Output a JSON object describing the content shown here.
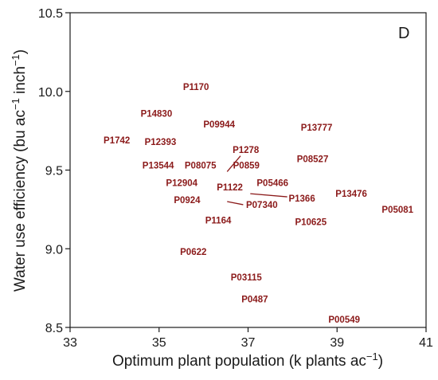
{
  "chart_data": {
    "type": "scatter",
    "panel_label": "D",
    "xlim": [
      33,
      41
    ],
    "ylim": [
      8.5,
      10.5
    ],
    "x_ticks": [
      "33",
      "35",
      "37",
      "39",
      "41"
    ],
    "y_ticks": [
      "8.5",
      "9.0",
      "9.5",
      "10.0",
      "10.5"
    ],
    "xlabel": "Optimum plant population (k plants ac",
    "xlabel_sup": "−1",
    "xlabel_suffix": ")",
    "ylabel": "Water use efficiency (bu ac",
    "ylabel_sup1": "−1",
    "ylabel_mid": " inch",
    "ylabel_sup2": "−1",
    "ylabel_suffix": ")",
    "grid": false,
    "label_color": "#8b1a1a",
    "points": [
      {
        "label": "P1170",
        "x": 35.83,
        "y": 10.03
      },
      {
        "label": "P14830",
        "x": 34.94,
        "y": 9.86
      },
      {
        "label": "P09944",
        "x": 36.35,
        "y": 9.79
      },
      {
        "label": "P13777",
        "x": 38.54,
        "y": 9.77
      },
      {
        "label": "P1742",
        "x": 34.05,
        "y": 9.69
      },
      {
        "label": "P12393",
        "x": 35.03,
        "y": 9.68
      },
      {
        "label": "P1278",
        "x": 36.95,
        "y": 9.63
      },
      {
        "label": "P08527",
        "x": 38.45,
        "y": 9.57
      },
      {
        "label": "P13544",
        "x": 34.98,
        "y": 9.53
      },
      {
        "label": "P08075",
        "x": 35.93,
        "y": 9.53
      },
      {
        "label": "P0859",
        "x": 36.96,
        "y": 9.53
      },
      {
        "label": "P12904",
        "x": 35.51,
        "y": 9.42
      },
      {
        "label": "P05466",
        "x": 37.55,
        "y": 9.42
      },
      {
        "label": "P1122",
        "x": 36.59,
        "y": 9.39
      },
      {
        "label": "P13476",
        "x": 39.32,
        "y": 9.35
      },
      {
        "label": "P1366",
        "x": 38.21,
        "y": 9.32
      },
      {
        "label": "P0924",
        "x": 35.63,
        "y": 9.31
      },
      {
        "label": "P07340",
        "x": 37.31,
        "y": 9.28
      },
      {
        "label": "P05081",
        "x": 40.36,
        "y": 9.25
      },
      {
        "label": "P1164",
        "x": 36.33,
        "y": 9.18
      },
      {
        "label": "P10625",
        "x": 38.41,
        "y": 9.17
      },
      {
        "label": "P0622",
        "x": 35.77,
        "y": 8.98
      },
      {
        "label": "P03115",
        "x": 36.96,
        "y": 8.82
      },
      {
        "label": "P0487",
        "x": 37.15,
        "y": 8.68
      },
      {
        "label": "P00549",
        "x": 39.16,
        "y": 8.55
      }
    ],
    "connectors": [
      {
        "x1": 36.83,
        "y1": 9.59,
        "x2": 36.53,
        "y2": 9.49
      },
      {
        "x1": 37.05,
        "y1": 9.35,
        "x2": 37.88,
        "y2": 9.33
      },
      {
        "x1": 36.53,
        "y1": 9.3,
        "x2": 36.89,
        "y2": 9.28
      }
    ]
  }
}
